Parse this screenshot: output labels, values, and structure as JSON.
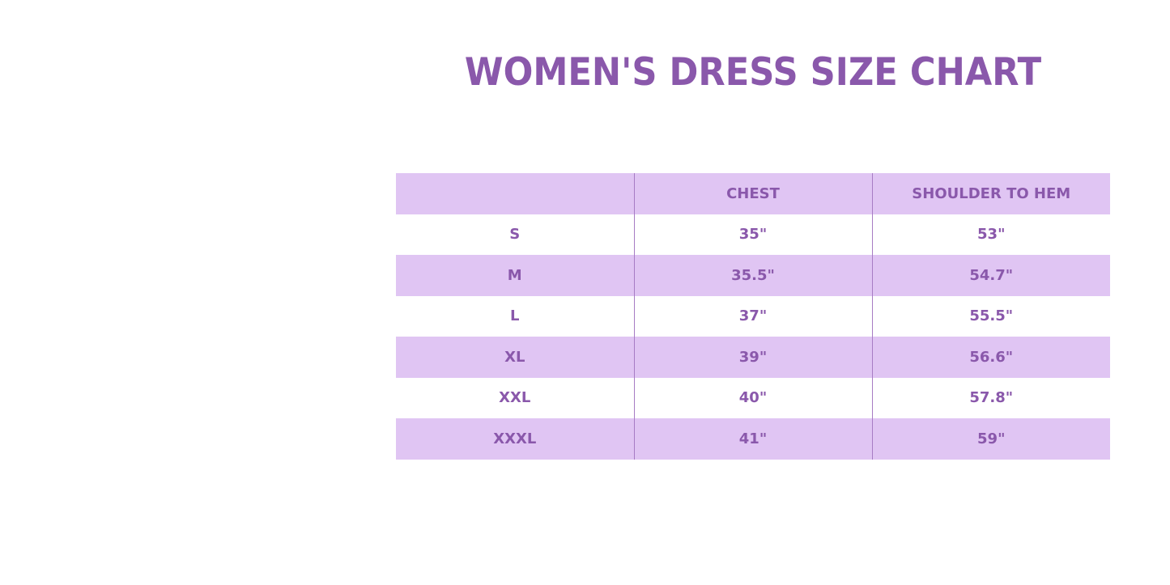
{
  "title": "WOMEN'S DRESS SIZE CHART",
  "table": {
    "headers": [
      "",
      "CHEST",
      "SHOULDER TO HEM"
    ],
    "rows": [
      [
        "S",
        "35\"",
        "53\""
      ],
      [
        "M",
        "35.5\"",
        "54.7\""
      ],
      [
        "L",
        "37\"",
        "55.5\""
      ],
      [
        "XL",
        "39\"",
        "56.6\""
      ],
      [
        "XXL",
        "40\"",
        "57.8\""
      ],
      [
        "XXXL",
        "41\"",
        "59\""
      ]
    ]
  },
  "colors": {
    "text": "#8a58ab",
    "band": "#e0c5f3",
    "divider": "#a77cc4"
  }
}
